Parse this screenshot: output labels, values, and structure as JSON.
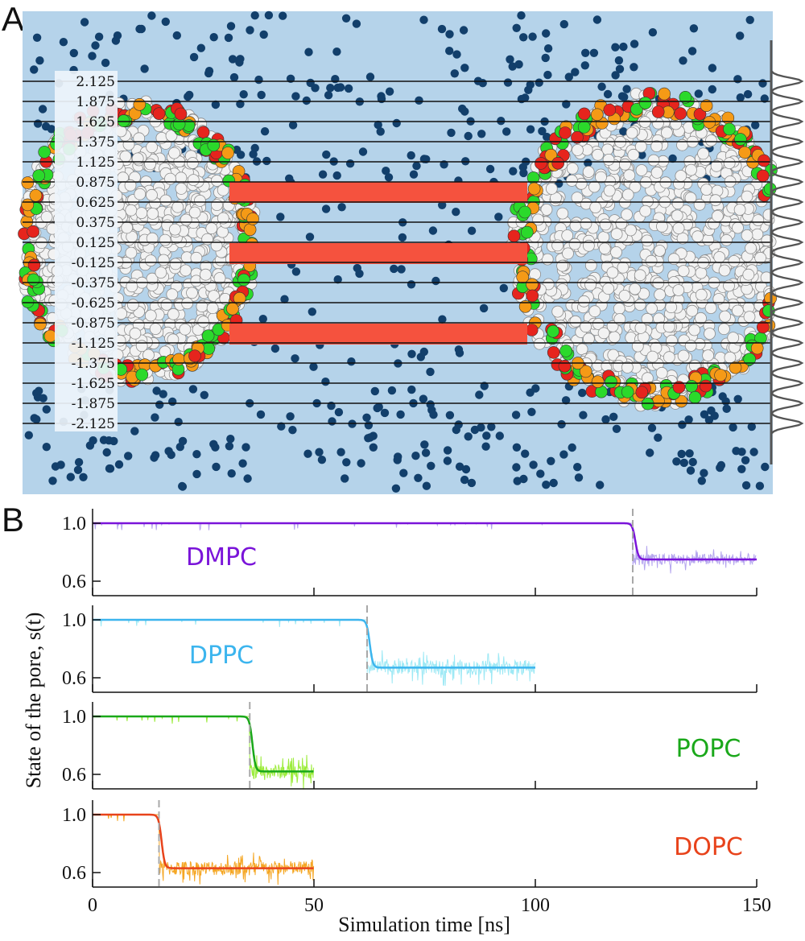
{
  "panel_a": {
    "letter": "A",
    "slab_labels": [
      "2.125",
      "1.875",
      "1.625",
      "1.375",
      "1.125",
      "0.875",
      "0.625",
      "0.375",
      "0.125",
      "-0.125",
      "-0.375",
      "-0.625",
      "-0.875",
      "-1.125",
      "-1.375",
      "-1.625",
      "-1.875",
      "-2.125"
    ],
    "colors": {
      "water": "#b5d3ea",
      "ion": "#123f6b",
      "pore_band": "#f5523e",
      "bilayer": "#f2f2f2",
      "headgroup_green": "#2bd92b",
      "headgroup_red": "#e6241d",
      "headgroup_orange": "#f59a16",
      "gaussian": "#555555"
    }
  },
  "chart_data": {
    "type": "line",
    "panel_letter": "B",
    "xlabel": "Simulation time [ns]",
    "ylabel": "State of the pore, s(t)",
    "xlim": [
      0,
      150
    ],
    "xticks": [
      0,
      50,
      100,
      150
    ],
    "ylim": [
      0.5,
      1.1
    ],
    "yticks": [
      0.6,
      1.0
    ],
    "ytick_labels": [
      "0.6",
      "1.0"
    ],
    "xtick_labels": [
      "0",
      "50",
      "100",
      "150"
    ],
    "grid": false,
    "series": [
      {
        "name": "DMPC",
        "color": "#7a14d9",
        "raw_color": "#b5a6ef",
        "t_end": 150,
        "t_transition": 122,
        "s_initial": 1.0,
        "s_final": 0.75,
        "noise": 0.04
      },
      {
        "name": "DPPC",
        "color": "#3cb5ee",
        "raw_color": "#9ee9f5",
        "t_end": 100,
        "t_transition": 62,
        "s_initial": 1.0,
        "s_final": 0.67,
        "noise": 0.05
      },
      {
        "name": "POPC",
        "color": "#1aa81a",
        "raw_color": "#9cec3c",
        "t_end": 50,
        "t_transition": 35.5,
        "s_initial": 1.0,
        "s_final": 0.62,
        "noise": 0.05
      },
      {
        "name": "DOPC",
        "color": "#e8431b",
        "raw_color": "#f5a623",
        "t_end": 50,
        "t_transition": 15,
        "s_initial": 1.0,
        "s_final": 0.63,
        "noise": 0.05
      }
    ]
  }
}
